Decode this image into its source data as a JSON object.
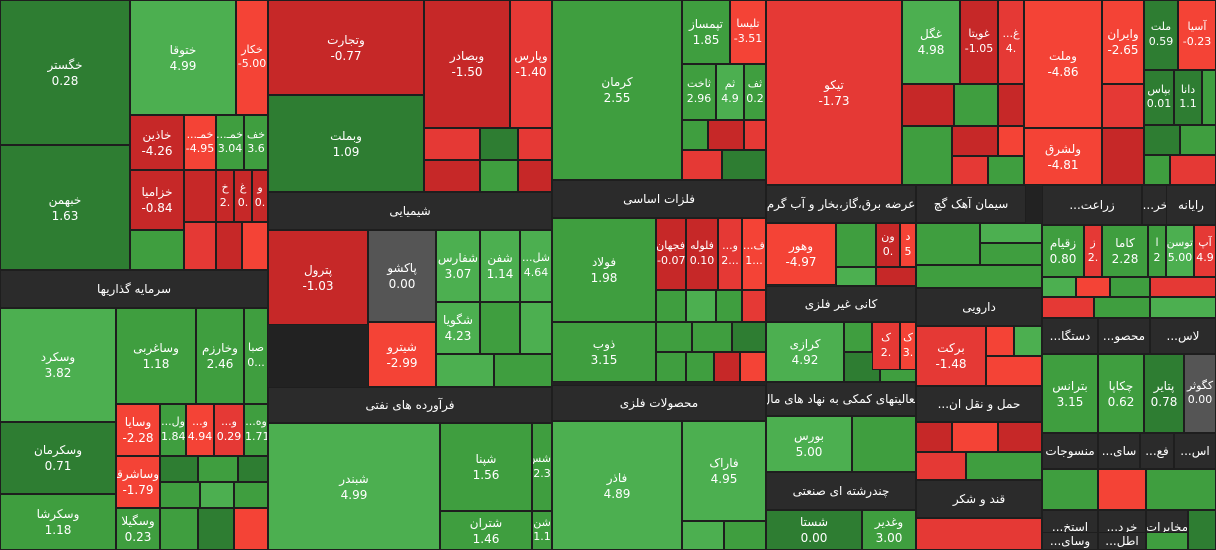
{
  "colors": {
    "dg": "#2e7d32",
    "g": "#3f9e3f",
    "lg": "#4caf50",
    "dr": "#c62828",
    "r": "#e53935",
    "lr": "#f44336",
    "n": "#555555"
  },
  "sectors": [
    {
      "label": "سرمایه گذاریها"
    },
    {
      "label": "شیمیایی"
    },
    {
      "label": "فرآورده های نفتی"
    },
    {
      "label": "فلزات اساسی"
    },
    {
      "label": "محصولات فلزی"
    },
    {
      "label": "عرضه برق،گاز،بخار و آب گرم"
    },
    {
      "label": "سیمان آهک گچ"
    },
    {
      "label": "کانی غیر فلزی"
    },
    {
      "label": "دارویی"
    },
    {
      "label": "فعالیتهای کمکی به نهاد های مال"
    },
    {
      "label": "حمل و نقل ان..."
    },
    {
      "label": "چندرشته ای صنعتی"
    },
    {
      "label": "قند و شکر"
    },
    {
      "label": "زراعت..."
    },
    {
      "label": "استخر..."
    },
    {
      "label": "رایانه"
    },
    {
      "label": "دستگا..."
    },
    {
      "label": "محصو..."
    },
    {
      "label": "لاس..."
    },
    {
      "label": "منسوجات"
    },
    {
      "label": "سای..."
    },
    {
      "label": "فع..."
    },
    {
      "label": "اس..."
    },
    {
      "label": "استخ..."
    },
    {
      "label": "خرد..."
    },
    {
      "label": "مخابرات"
    },
    {
      "label": "وسای..."
    },
    {
      "label": "اطل..."
    }
  ],
  "tiles": [
    {
      "name": "خگستر",
      "value": "0.28"
    },
    {
      "name": "خبهمن",
      "value": "1.63"
    },
    {
      "name": "ختوقا",
      "value": "4.99"
    },
    {
      "name": "خکار",
      "value": "-5.00"
    },
    {
      "name": "خاذین",
      "value": "-4.26"
    },
    {
      "name": "خمـ...",
      "value": "-4.95"
    },
    {
      "name": "خمـ...",
      "value": "3.04"
    },
    {
      "name": "خف",
      "value": "3.6"
    },
    {
      "name": "خزامیا",
      "value": "-0.84"
    },
    {
      "name": "خ",
      "value": "2."
    },
    {
      "name": "غ",
      "value": "0."
    },
    {
      "name": "و",
      "value": "0."
    },
    {
      "name": "وتجارت",
      "value": "-0.77"
    },
    {
      "name": "وبصادر",
      "value": "-1.50"
    },
    {
      "name": "وپارس",
      "value": "-1.40"
    },
    {
      "name": "وبملت",
      "value": "1.09"
    },
    {
      "name": "کرمان",
      "value": "2.55"
    },
    {
      "name": "تپمساز",
      "value": "1.85"
    },
    {
      "name": "تلیسا",
      "value": "-3.51"
    },
    {
      "name": "ثاخت",
      "value": "2.96"
    },
    {
      "name": "ثم",
      "value": "4.9"
    },
    {
      "name": "ثف",
      "value": "0.2"
    },
    {
      "name": "تیکو",
      "value": "-1.73"
    },
    {
      "name": "غگل",
      "value": "4.98"
    },
    {
      "name": "غویتا",
      "value": "-1.05"
    },
    {
      "name": "غ...",
      "value": "4."
    },
    {
      "name": "وملت",
      "value": "-4.86"
    },
    {
      "name": "وایران",
      "value": "-2.65"
    },
    {
      "name": "ملت",
      "value": "0.59"
    },
    {
      "name": "آسیا",
      "value": "-0.23"
    },
    {
      "name": "بپاس",
      "value": "0.01"
    },
    {
      "name": "دانا",
      "value": "1.1"
    },
    {
      "name": "ولشرق",
      "value": "-4.81"
    },
    {
      "name": "پترول",
      "value": "-1.03"
    },
    {
      "name": "پاکشو",
      "value": "0.00"
    },
    {
      "name": "شفارس",
      "value": "3.07"
    },
    {
      "name": "شفن",
      "value": "1.14"
    },
    {
      "name": "شل...",
      "value": "4.64"
    },
    {
      "name": "شگویا",
      "value": "4.23"
    },
    {
      "name": "شیترو",
      "value": "-2.99"
    },
    {
      "name": "فولاد",
      "value": "1.98"
    },
    {
      "name": "فجهان",
      "value": "-0.07"
    },
    {
      "name": "فلوله",
      "value": "0.10"
    },
    {
      "name": "و...",
      "value": "2..."
    },
    {
      "name": "ف...",
      "value": "1..."
    },
    {
      "name": "ذوب",
      "value": "3.15"
    },
    {
      "name": "وهور",
      "value": "-4.97"
    },
    {
      "name": "ون",
      "value": "0."
    },
    {
      "name": "د",
      "value": "5"
    },
    {
      "name": "زقیام",
      "value": "0.80"
    },
    {
      "name": "ز",
      "value": "2."
    },
    {
      "name": "کاما",
      "value": "2.28"
    },
    {
      "name": "ا",
      "value": "2"
    },
    {
      "name": "توسن",
      "value": "5.00"
    },
    {
      "name": "آپ",
      "value": "4.9"
    },
    {
      "name": "کرازی",
      "value": "4.92"
    },
    {
      "name": "ک",
      "value": "2."
    },
    {
      "name": "ک",
      "value": "3."
    },
    {
      "name": "برکت",
      "value": "-1.48"
    },
    {
      "name": "وسکرد",
      "value": "3.82"
    },
    {
      "name": "وساغربی",
      "value": "1.18"
    },
    {
      "name": "وخارزم",
      "value": "2.46"
    },
    {
      "name": "صبا",
      "value": "0..."
    },
    {
      "name": "وسایا",
      "value": "-2.28"
    },
    {
      "name": "ول...",
      "value": "1.84"
    },
    {
      "name": "و...",
      "value": "4.94"
    },
    {
      "name": "و...",
      "value": "0.29"
    },
    {
      "name": "وه...",
      "value": "1.71"
    },
    {
      "name": "وسکرمان",
      "value": "0.71"
    },
    {
      "name": "وساشرقی",
      "value": "-1.79"
    },
    {
      "name": "وسکرشا",
      "value": "1.18"
    },
    {
      "name": "وسگیلا",
      "value": "0.23"
    },
    {
      "name": "شبندر",
      "value": "4.99"
    },
    {
      "name": "شپنا",
      "value": "1.56"
    },
    {
      "name": "شس",
      "value": "2.3"
    },
    {
      "name": "شتران",
      "value": "1.46"
    },
    {
      "name": "شن",
      "value": "1.1"
    },
    {
      "name": "فاذر",
      "value": "4.89"
    },
    {
      "name": "فاراک",
      "value": "4.95"
    },
    {
      "name": "بورس",
      "value": "5.00"
    },
    {
      "name": "شستا",
      "value": "0.00"
    },
    {
      "name": "وغدیر",
      "value": "3.00"
    },
    {
      "name": "بترانس",
      "value": "3.15"
    },
    {
      "name": "چکاپا",
      "value": "0.62"
    },
    {
      "name": "پتایر",
      "value": "0.78"
    },
    {
      "name": "کگوثر",
      "value": "0.00"
    }
  ]
}
